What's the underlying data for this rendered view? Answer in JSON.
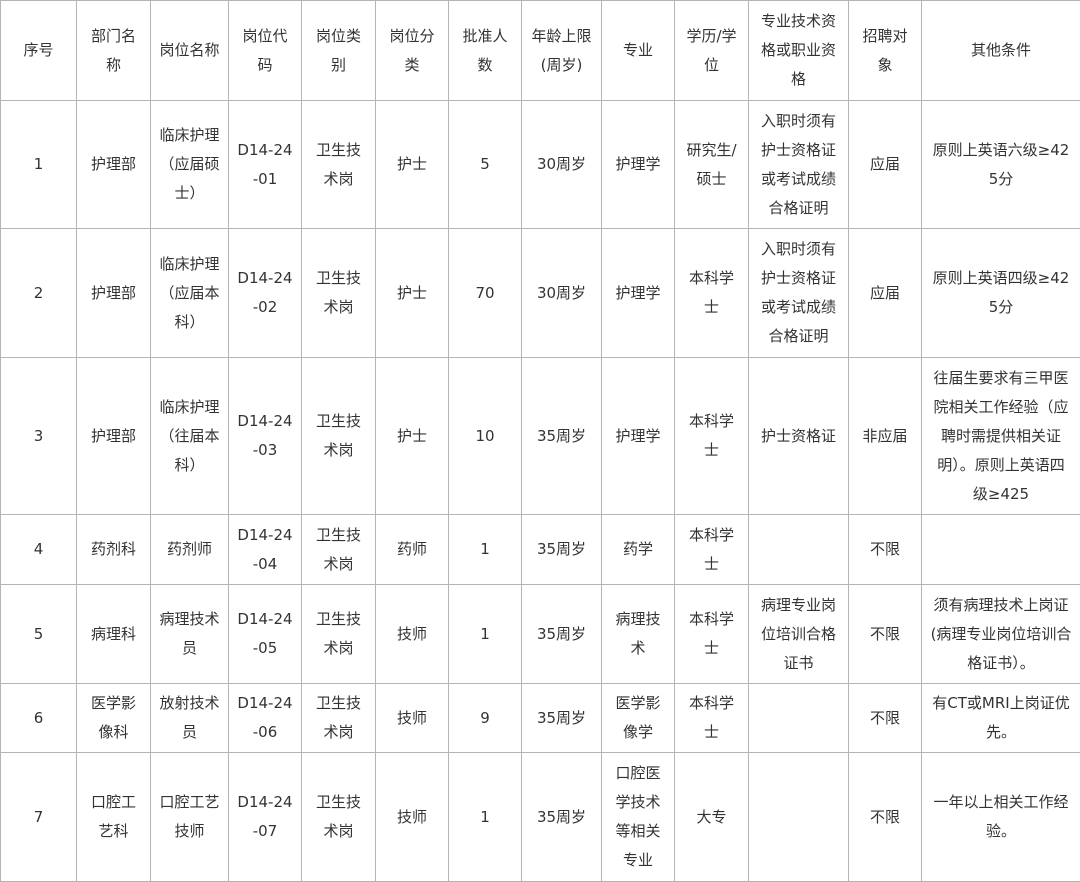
{
  "headers": [
    "序号",
    "部门名称",
    "岗位名称",
    "岗位代码",
    "岗位类别",
    "岗位分类",
    "批准人数",
    "年龄上限(周岁)",
    "专业",
    "学历/学位",
    "专业技术资格或职业资格",
    "招聘对象",
    "其他条件"
  ],
  "rows": [
    [
      "1",
      "护理部",
      "临床护理（应届硕士）",
      "D14-24-01",
      "卫生技术岗",
      "护士",
      "5",
      "30周岁",
      "护理学",
      "研究生/硕士",
      "入职时须有护士资格证或考试成绩合格证明",
      "应届",
      "原则上英语六级≥425分"
    ],
    [
      "2",
      "护理部",
      "临床护理（应届本科）",
      "D14-24-02",
      "卫生技术岗",
      "护士",
      "70",
      "30周岁",
      "护理学",
      "本科学士",
      "入职时须有护士资格证或考试成绩合格证明",
      "应届",
      "原则上英语四级≥425分"
    ],
    [
      "3",
      "护理部",
      "临床护理（往届本科）",
      "D14-24-03",
      "卫生技术岗",
      "护士",
      "10",
      "35周岁",
      "护理学",
      "本科学士",
      "护士资格证",
      "非应届",
      "往届生要求有三甲医院相关工作经验（应聘时需提供相关证明）。原则上英语四级≥425"
    ],
    [
      "4",
      "药剂科",
      "药剂师",
      "D14-24-04",
      "卫生技术岗",
      "药师",
      "1",
      "35周岁",
      "药学",
      "本科学士",
      "",
      "不限",
      ""
    ],
    [
      "5",
      "病理科",
      "病理技术员",
      "D14-24-05",
      "卫生技术岗",
      "技师",
      "1",
      "35周岁",
      "病理技术",
      "本科学士",
      "病理专业岗位培训合格证书",
      "不限",
      "须有病理技术上岗证(病理专业岗位培训合格证书）。"
    ],
    [
      "6",
      "医学影像科",
      "放射技术员",
      "D14-24-06",
      "卫生技术岗",
      "技师",
      "9",
      "35周岁",
      "医学影像学",
      "本科学士",
      "",
      "不限",
      "有CT或MRI上岗证优先。"
    ],
    [
      "7",
      "口腔工艺科",
      "口腔工艺技师",
      "D14-24-07",
      "卫生技术岗",
      "技师",
      "1",
      "35周岁",
      "口腔医学技术等相关专业",
      "大专",
      "",
      "不限",
      "一年以上相关工作经验。"
    ]
  ]
}
